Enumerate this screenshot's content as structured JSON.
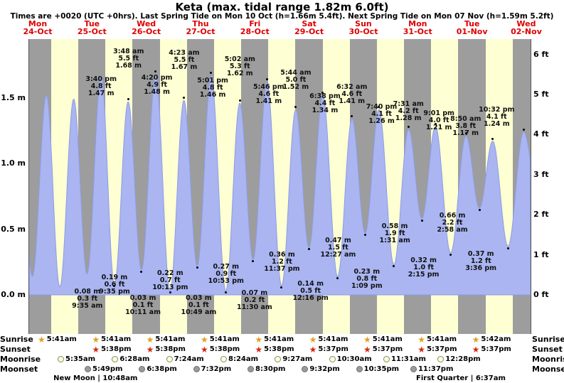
{
  "header": {
    "title": "Keta (max. tidal range 1.82m 6.0ft)",
    "subtitle": "Times are +0020 (UTC +0hrs). Last Spring Tide on Mon 10 Oct (h=1.66m 5.4ft). Next Spring Tide on Mon 07 Nov (h=1.59m 5.2ft)"
  },
  "chart_data": {
    "type": "area",
    "title": "Keta tide curve",
    "ylim_m": [
      0.0,
      2.24
    ],
    "left_axis_ticks": [
      "0.0 m",
      "0.5 m",
      "1.0 m",
      "1.5 m"
    ],
    "right_axis_ticks": [
      "0 ft",
      "1 ft",
      "2 ft",
      "3 ft",
      "4 ft",
      "5 ft",
      "6 ft"
    ],
    "days": [
      {
        "dow": "Mon",
        "date": "24-Oct"
      },
      {
        "dow": "Tue",
        "date": "25-Oct"
      },
      {
        "dow": "Wed",
        "date": "26-Oct"
      },
      {
        "dow": "Thu",
        "date": "27-Oct"
      },
      {
        "dow": "Fri",
        "date": "28-Oct"
      },
      {
        "dow": "Sat",
        "date": "29-Oct"
      },
      {
        "dow": "Sun",
        "date": "30-Oct"
      },
      {
        "dow": "Mon",
        "date": "31-Oct"
      },
      {
        "dow": "Tue",
        "date": "01-Nov"
      },
      {
        "dow": "Wed",
        "date": "02-Nov"
      }
    ],
    "extremes": [
      {
        "day": 1,
        "type": "low",
        "m": "0.08 m",
        "ft": "0.3 ft",
        "time": "9:35 am"
      },
      {
        "day": 1,
        "type": "high",
        "time": "3:40 pm",
        "ft": "4.8 ft",
        "m": "1.47 m"
      },
      {
        "day": 1,
        "type": "low",
        "m": "0.19 m",
        "ft": "0.6 ft",
        "time": "9:35 pm"
      },
      {
        "day": 2,
        "type": "high",
        "time": "3:48 am",
        "ft": "5.5 ft",
        "m": "1.68 m"
      },
      {
        "day": 2,
        "type": "low",
        "m": "0.03 m",
        "ft": "0.1 ft",
        "time": "10:11 am"
      },
      {
        "day": 2,
        "type": "high",
        "time": "4:20 pm",
        "ft": "4.9 ft",
        "m": "1.48 m"
      },
      {
        "day": 2,
        "type": "low",
        "m": "0.22 m",
        "ft": "0.7 ft",
        "time": "10:13 pm"
      },
      {
        "day": 3,
        "type": "high",
        "time": "4:23 am",
        "ft": "5.5 ft",
        "m": "1.67 m"
      },
      {
        "day": 3,
        "type": "low",
        "m": "0.03 m",
        "ft": "0.1 ft",
        "time": "10:49 am"
      },
      {
        "day": 3,
        "type": "high",
        "time": "5:01 pm",
        "ft": "4.8 ft",
        "m": "1.46 m"
      },
      {
        "day": 3,
        "type": "low",
        "m": "0.27 m",
        "ft": "0.9 ft",
        "time": "10:53 pm"
      },
      {
        "day": 4,
        "type": "high",
        "time": "5:02 am",
        "ft": "5.3 ft",
        "m": "1.62 m"
      },
      {
        "day": 4,
        "type": "low",
        "m": "0.07 m",
        "ft": "0.2 ft",
        "time": "11:30 am"
      },
      {
        "day": 4,
        "type": "high",
        "time": "5:46 pm",
        "ft": "4.6 ft",
        "m": "1.41 m"
      },
      {
        "day": 4,
        "type": "low",
        "m": "0.36 m",
        "ft": "1.2 ft",
        "time": "11:37 pm"
      },
      {
        "day": 5,
        "type": "high",
        "time": "5:44 am",
        "ft": "5.0 ft",
        "m": "1.52 m"
      },
      {
        "day": 5,
        "type": "low",
        "m": "0.14 m",
        "ft": "0.5 ft",
        "time": "12:16 pm"
      },
      {
        "day": 5,
        "type": "high",
        "time": "6:38 pm",
        "ft": "4.4 ft",
        "m": "1.34 m"
      },
      {
        "day": 6,
        "type": "low",
        "m": "0.47 m",
        "ft": "1.5 ft",
        "time": "12:27 am"
      },
      {
        "day": 6,
        "type": "high",
        "time": "6:32 am",
        "ft": "4.6 ft",
        "m": "1.41 m"
      },
      {
        "day": 6,
        "type": "low",
        "m": "0.23 m",
        "ft": "0.8 ft",
        "time": "1:09 pm"
      },
      {
        "day": 6,
        "type": "high",
        "time": "7:40 pm",
        "ft": "4.1 ft",
        "m": "1.26 m"
      },
      {
        "day": 7,
        "type": "low",
        "m": "0.58 m",
        "ft": "1.9 ft",
        "time": "1:31 am"
      },
      {
        "day": 7,
        "type": "high",
        "time": "7:31 am",
        "ft": "4.2 ft",
        "m": "1.28 m"
      },
      {
        "day": 7,
        "type": "low",
        "m": "0.32 m",
        "ft": "1.0 ft",
        "time": "2:15 pm"
      },
      {
        "day": 7,
        "type": "high",
        "time": "9:01 pm",
        "ft": "4.0 ft",
        "m": "1.21 m"
      },
      {
        "day": 8,
        "type": "low",
        "m": "0.66 m",
        "ft": "2.2 ft",
        "time": "2:58 am"
      },
      {
        "day": 8,
        "type": "high",
        "time": "8:50 am",
        "ft": "3.8 ft",
        "m": "1.17 m"
      },
      {
        "day": 8,
        "type": "low",
        "m": "0.37 m",
        "ft": "1.2 ft",
        "time": "3:36 pm"
      },
      {
        "day": 8,
        "type": "high",
        "time": "10:32 pm",
        "ft": "4.1 ft",
        "m": "1.24 m"
      }
    ],
    "unlabeled_curve_anchors_estimated": [
      {
        "day": -1,
        "time": "3:10 pm",
        "m": "1.44"
      },
      {
        "day": -1,
        "time": "9:20 pm",
        "m": "0.14"
      },
      {
        "day": 0,
        "time": "3:32 am",
        "m": "1.52"
      },
      {
        "day": 0,
        "time": "9:28 am",
        "m": "0.06"
      },
      {
        "day": 0,
        "time": "3:36 pm",
        "m": "1.49"
      },
      {
        "day": 0,
        "time": "9:30 pm",
        "m": "0.16"
      },
      {
        "day": 1,
        "time": "3:44 am",
        "m": "1.67"
      },
      {
        "day": 9,
        "time": "4:55 am",
        "m": "0.74"
      },
      {
        "day": 9,
        "time": "11:40 am",
        "m": "1.10"
      }
    ],
    "colors": {
      "curve_fill": "#aab5f1",
      "curve_stroke": "#8d9ce8",
      "band_day": "#feffd2",
      "band_night": "#9d9d9d",
      "day_label": "#dd0000",
      "sunrise_star": "#dfa020",
      "sunset_star": "#d42a10"
    },
    "legend_position": "none",
    "grid": "off"
  },
  "astro": {
    "rows": [
      {
        "label": "Sunrise",
        "icon": "sunrise-star",
        "entries": [
          {
            "day": 0,
            "time": "5:41am"
          },
          {
            "day": 1,
            "time": "5:41am"
          },
          {
            "day": 2,
            "time": "5:41am"
          },
          {
            "day": 3,
            "time": "5:41am"
          },
          {
            "day": 4,
            "time": "5:41am"
          },
          {
            "day": 5,
            "time": "5:41am"
          },
          {
            "day": 6,
            "time": "5:41am"
          },
          {
            "day": 7,
            "time": "5:41am"
          },
          {
            "day": 8,
            "time": "5:42am"
          }
        ]
      },
      {
        "label": "Sunset",
        "icon": "sunset-star",
        "entries": [
          {
            "day": 1,
            "time": "5:38pm"
          },
          {
            "day": 2,
            "time": "5:38pm"
          },
          {
            "day": 3,
            "time": "5:38pm"
          },
          {
            "day": 4,
            "time": "5:38pm"
          },
          {
            "day": 5,
            "time": "5:37pm"
          },
          {
            "day": 6,
            "time": "5:37pm"
          },
          {
            "day": 7,
            "time": "5:37pm"
          },
          {
            "day": 8,
            "time": "5:37pm"
          }
        ]
      },
      {
        "label": "Moonrise",
        "icon": "moonrise-circle",
        "entries": [
          {
            "day": 0,
            "time": "5:35am"
          },
          {
            "day": 1,
            "time": "6:28am"
          },
          {
            "day": 2,
            "time": "7:24am"
          },
          {
            "day": 3,
            "time": "8:24am"
          },
          {
            "day": 4,
            "time": "9:27am"
          },
          {
            "day": 5,
            "time": "10:30am"
          },
          {
            "day": 6,
            "time": "11:31am"
          },
          {
            "day": 7,
            "time": "12:28pm"
          }
        ]
      },
      {
        "label": "Moonset",
        "icon": "moonset-circle",
        "entries": [
          {
            "day": 0,
            "time": "5:49pm"
          },
          {
            "day": 1,
            "time": "6:38pm"
          },
          {
            "day": 2,
            "time": "7:32pm"
          },
          {
            "day": 3,
            "time": "8:30pm"
          },
          {
            "day": 4,
            "time": "9:32pm"
          },
          {
            "day": 5,
            "time": "10:35pm"
          },
          {
            "day": 6,
            "time": "11:37pm"
          }
        ]
      }
    ],
    "notes": [
      {
        "day": 0.29,
        "text": "New Moon | 10:48am"
      },
      {
        "day": 6.97,
        "text": "First Quarter | 6:37am"
      }
    ]
  }
}
